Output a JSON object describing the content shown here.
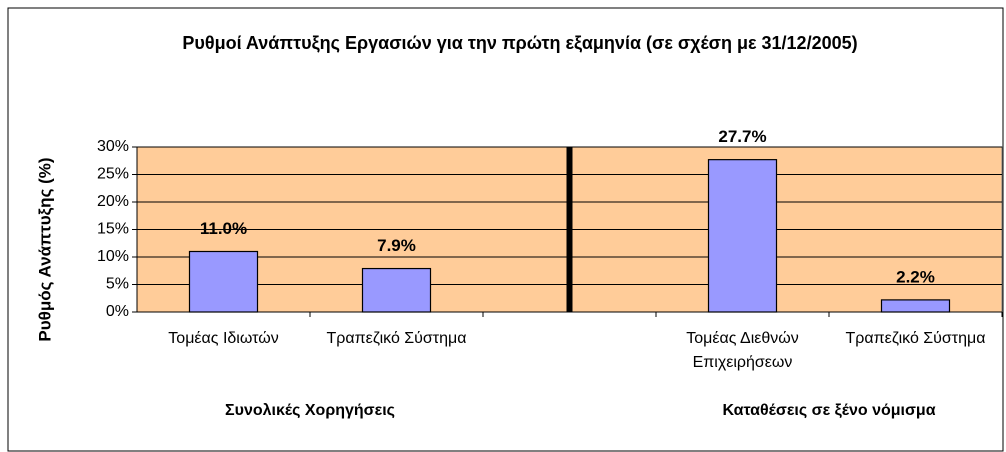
{
  "chart_data": {
    "type": "bar",
    "title": "Ρυθμοί Ανάπτυξης Εργασιών για την πρώτη εξαμηνία (σε σχέση με 31/12/2005)",
    "y_label": "Ρυθμός Ανάπτυξης (%)",
    "categories": [
      "Τομέας Ιδιωτών",
      "Τραπεζικό Σύστημα",
      null,
      "Τομέας Διεθνών Επιχειρήσεων",
      "Τραπεζικό Σύστημα"
    ],
    "values": [
      11.0,
      7.9,
      null,
      27.7,
      2.2
    ],
    "value_labels": [
      "11.0%",
      "7.9%",
      null,
      "27.7%",
      "2.2%"
    ],
    "group_labels": [
      "Συνολικές Χορηγήσεις",
      "Καταθέσεις σε ξένο νόμισμα"
    ],
    "color": "#9999ff",
    "background": "#ffcc99",
    "ylim": [
      0,
      30
    ],
    "yticks": [
      {
        "value": 0,
        "label": "0%"
      },
      {
        "value": 5,
        "label": "5%"
      },
      {
        "value": 10,
        "label": "10%"
      },
      {
        "value": 15,
        "label": "15%"
      },
      {
        "value": 20,
        "label": "20%"
      },
      {
        "value": 25,
        "label": "25%"
      },
      {
        "value": 30,
        "label": "30%"
      }
    ],
    "grid": true
  }
}
